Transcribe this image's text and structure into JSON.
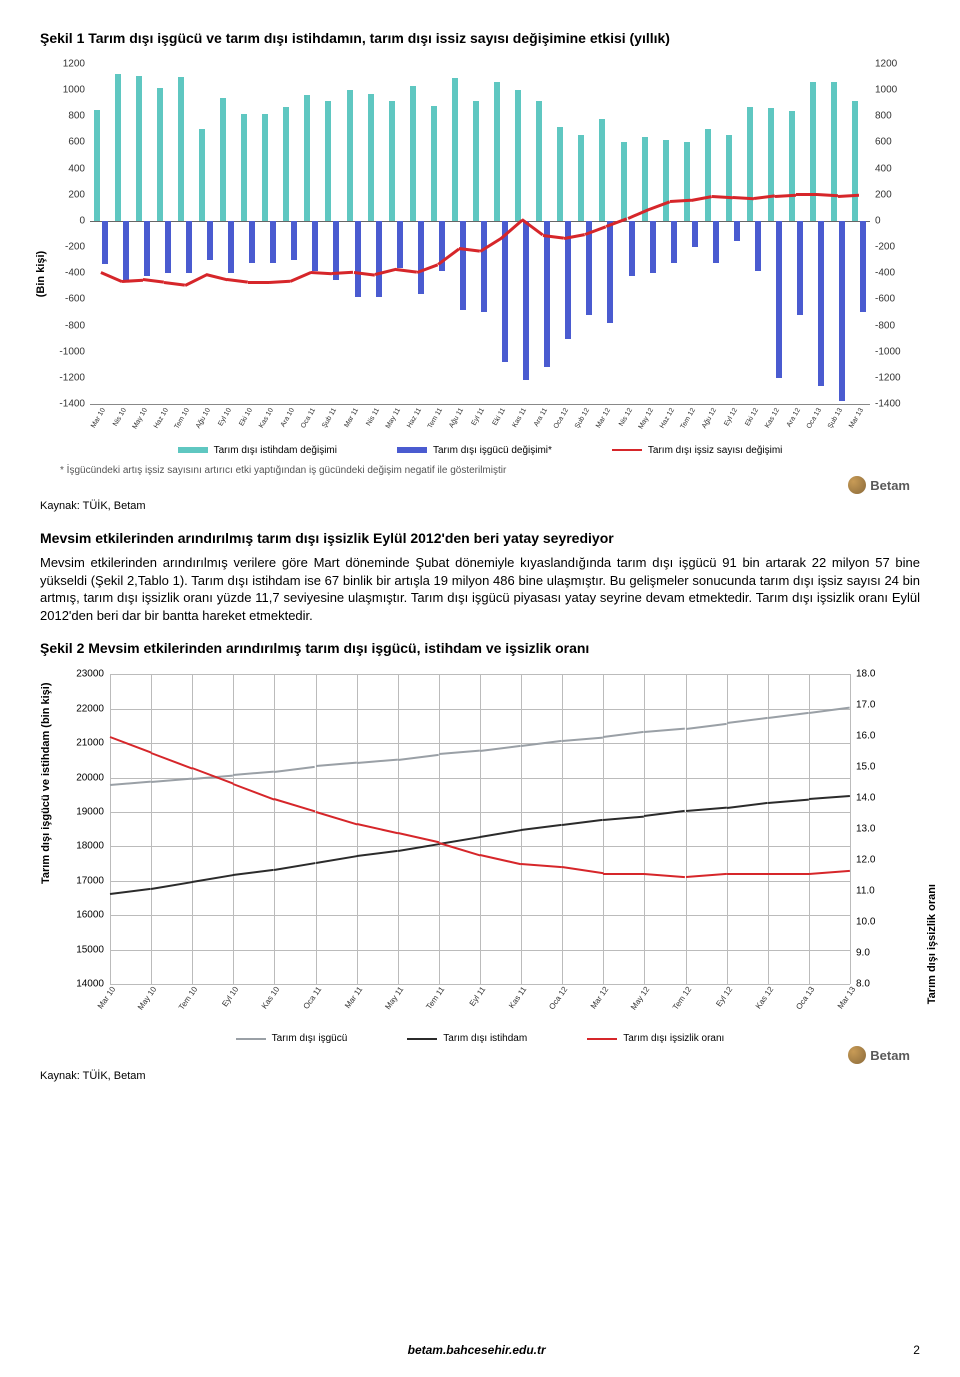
{
  "chart1": {
    "title": "Şekil 1 Tarım dışı işgücü ve tarım dışı istihdamın, tarım dışı issiz sayısı değişimine etkisi (yıllık)",
    "type": "bar+line",
    "ylabel_left": "(Bin kişi)",
    "ylim_left": [
      -1400,
      1200
    ],
    "ytick_step_left": 200,
    "ylim_right": [
      -1400,
      1200
    ],
    "ytick_step_right": 200,
    "categories": [
      "Mar 10",
      "Nis 10",
      "May 10",
      "Haz 10",
      "Tem 10",
      "Ağu 10",
      "Eyl 10",
      "Eki 10",
      "Kas 10",
      "Ara 10",
      "Oca 11",
      "Şub 11",
      "Mar 11",
      "Nis 11",
      "May 11",
      "Haz 11",
      "Tem 11",
      "Ağu 11",
      "Eyl 11",
      "Eki 11",
      "Kas 11",
      "Ara 11",
      "Oca 12",
      "Şub 12",
      "Mar 12",
      "Nis 12",
      "May 12",
      "Haz 12",
      "Tem 12",
      "Ağu 12",
      "Eyl 12",
      "Eki 12",
      "Kas 12",
      "Ara 12",
      "Oca 13",
      "Şub 13",
      "Mar 13"
    ],
    "series": {
      "employment_change": {
        "label": "Tarım dışı istihdam değişimi",
        "color": "#5fc7c1",
        "values": [
          850,
          1120,
          1110,
          1020,
          1100,
          700,
          940,
          820,
          820,
          870,
          960,
          920,
          1000,
          970,
          920,
          1030,
          880,
          1090,
          920,
          1060,
          1000,
          920,
          720,
          660,
          780,
          600,
          640,
          620,
          600,
          700,
          660,
          870,
          860,
          840,
          1060,
          1060,
          920
        ]
      },
      "labor_force_change": {
        "label": "Tarım dışı işgücü değişimi*",
        "color": "#4a5bd0",
        "values": [
          -330,
          -450,
          -420,
          -400,
          -400,
          -300,
          -400,
          -320,
          -320,
          -300,
          -380,
          -450,
          -580,
          -580,
          -360,
          -560,
          -380,
          -680,
          -700,
          -1080,
          -1220,
          -1120,
          -900,
          -720,
          -780,
          -420,
          -400,
          -320,
          -200,
          -320,
          -150,
          -380,
          -1200,
          -720,
          -1260,
          -1380,
          -700
        ]
      },
      "unemployed_change": {
        "label": "Tarım dışı işsiz sayısı değişimi",
        "color": "#d6262a",
        "values": [
          -380,
          -450,
          -440,
          -460,
          -480,
          -400,
          -440,
          -460,
          -460,
          -450,
          -380,
          -390,
          -380,
          -400,
          -360,
          -380,
          -320,
          -200,
          -220,
          -120,
          20,
          -100,
          -120,
          -90,
          -30,
          30,
          100,
          160,
          170,
          200,
          190,
          180,
          200,
          210,
          210,
          200,
          210
        ]
      }
    },
    "legend_footnote": "* İşgücündeki artış işsiz sayısını artırıcı etki yaptığından iş gücündeki değişim negatif ile gösterilmiştir",
    "logo_text": "Betam",
    "source": "Kaynak: TÜİK, Betam"
  },
  "section_heading": "Mevsim etkilerinden arındırılmış tarım dışı işsizlik Eylül 2012'den beri yatay seyrediyor",
  "body_text": "Mevsim etkilerinden arındırılmış verilere göre Mart döneminde Şubat dönemiyle kıyaslandığında tarım dışı işgücü 91 bin artarak 22 milyon 57 bine yükseldi (Şekil 2,Tablo 1). Tarım dışı istihdam ise 67 binlik bir artışla 19 milyon 486 bine ulaşmıştır. Bu gelişmeler sonucunda tarım dışı işsiz sayısı 24 bin artmış, tarım dışı işsizlik oranı yüzde 11,7 seviyesine ulaşmıştır. Tarım dışı işgücü piyasası yatay seyrine devam etmektedir. Tarım dışı işsizlik oranı Eylül 2012'den beri dar bir bantta hareket etmektedir.",
  "chart2": {
    "title": "Şekil 2 Mevsim etkilerinden arındırılmış tarım dışı işgücü, istihdam ve işsizlik oranı",
    "type": "line",
    "ylabel_left": "Tarım dışı işgücü ve istihdam (bin kişi)",
    "ylabel_right": "Tarım dışı işsizlik oranı",
    "ylim_left": [
      14000,
      23000
    ],
    "ytick_step_left": 1000,
    "ylim_right": [
      8.0,
      18.0
    ],
    "ytick_step_right": 1.0,
    "categories_x": [
      "Mar 10",
      "May 10",
      "Tem 10",
      "Eyl 10",
      "Kas 10",
      "Oca 11",
      "Mar 11",
      "May 11",
      "Tem 11",
      "Eyl 11",
      "Kas 11",
      "Oca 12",
      "Mar 12",
      "May 12",
      "Tem 12",
      "Eyl 12",
      "Kas 12",
      "Oca 13",
      "Mar 13"
    ],
    "series": {
      "labor_force": {
        "label": "Tarım dışı işgücü",
        "color": "#9aa0a6",
        "values": [
          19800,
          19900,
          20000,
          20100,
          20200,
          20350,
          20450,
          20550,
          20700,
          20800,
          20950,
          21100,
          21200,
          21350,
          21450,
          21600,
          21750,
          21900,
          22057
        ]
      },
      "employment": {
        "label": "Tarım dışı istihdam",
        "color": "#2b2b2b",
        "values": [
          16650,
          16800,
          17000,
          17200,
          17350,
          17550,
          17750,
          17900,
          18100,
          18300,
          18500,
          18650,
          18800,
          18900,
          19050,
          19150,
          19300,
          19400,
          19486
        ]
      },
      "unemployment_rate": {
        "label": "Tarım dışı işsizlik oranı",
        "color": "#d6262a",
        "values": [
          16.0,
          15.5,
          15.0,
          14.5,
          14.0,
          13.6,
          13.2,
          12.9,
          12.6,
          12.2,
          11.9,
          11.8,
          11.6,
          11.6,
          11.5,
          11.6,
          11.6,
          11.6,
          11.7
        ]
      }
    },
    "logo_text": "Betam",
    "source": "Kaynak: TÜİK, Betam"
  },
  "footer": {
    "center": "betam.bahcesehir.edu.tr",
    "page": "2"
  }
}
